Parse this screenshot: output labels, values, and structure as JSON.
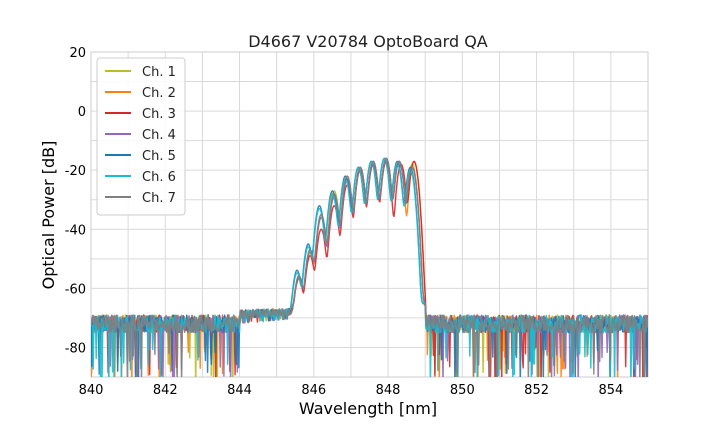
{
  "chart_data": {
    "type": "line",
    "title": "D4667 V20784 OptoBoard QA",
    "xlabel": "Wavelength [nm]",
    "ylabel": "Optical Power [dB]",
    "xlim": [
      840,
      855
    ],
    "ylim": [
      -90,
      20
    ],
    "xticks": [
      840,
      842,
      844,
      846,
      848,
      850,
      852,
      854
    ],
    "yticks": [
      20,
      0,
      -20,
      -40,
      -60,
      -80
    ],
    "grid": true,
    "legend_position": "top-left",
    "noise_floor_db": -72,
    "series": [
      {
        "name": "Ch. 1",
        "color": "#bcbd22",
        "peaks": [
          {
            "x": 845.6,
            "y": -56
          },
          {
            "x": 845.9,
            "y": -47
          },
          {
            "x": 846.2,
            "y": -35
          },
          {
            "x": 846.55,
            "y": -27
          },
          {
            "x": 846.9,
            "y": -22
          },
          {
            "x": 847.25,
            "y": -19
          },
          {
            "x": 847.6,
            "y": -17
          },
          {
            "x": 847.95,
            "y": -16
          },
          {
            "x": 848.3,
            "y": -17
          },
          {
            "x": 848.65,
            "y": -18
          }
        ]
      },
      {
        "name": "Ch. 2",
        "color": "#ff7f0e",
        "peaks": [
          {
            "x": 845.6,
            "y": -56
          },
          {
            "x": 845.9,
            "y": -48
          },
          {
            "x": 846.2,
            "y": -36
          },
          {
            "x": 846.55,
            "y": -28
          },
          {
            "x": 846.9,
            "y": -23
          },
          {
            "x": 847.25,
            "y": -19
          },
          {
            "x": 847.6,
            "y": -17
          },
          {
            "x": 847.95,
            "y": -16
          },
          {
            "x": 848.3,
            "y": -17
          },
          {
            "x": 848.7,
            "y": -17
          }
        ]
      },
      {
        "name": "Ch. 3",
        "color": "#d62728",
        "peaks": [
          {
            "x": 845.6,
            "y": -57
          },
          {
            "x": 845.9,
            "y": -49
          },
          {
            "x": 846.2,
            "y": -40
          },
          {
            "x": 846.55,
            "y": -32
          },
          {
            "x": 846.9,
            "y": -25
          },
          {
            "x": 847.25,
            "y": -20
          },
          {
            "x": 847.6,
            "y": -18
          },
          {
            "x": 847.95,
            "y": -17
          },
          {
            "x": 848.35,
            "y": -18
          },
          {
            "x": 848.7,
            "y": -17
          }
        ]
      },
      {
        "name": "Ch. 4",
        "color": "#9467bd",
        "peaks": [
          {
            "x": 845.6,
            "y": -56
          },
          {
            "x": 845.9,
            "y": -47
          },
          {
            "x": 846.2,
            "y": -36
          },
          {
            "x": 846.55,
            "y": -29
          },
          {
            "x": 846.9,
            "y": -23
          },
          {
            "x": 847.25,
            "y": -19
          },
          {
            "x": 847.6,
            "y": -17
          },
          {
            "x": 847.95,
            "y": -16
          },
          {
            "x": 848.3,
            "y": -17
          },
          {
            "x": 848.65,
            "y": -19
          }
        ]
      },
      {
        "name": "Ch. 5",
        "color": "#1f77b4",
        "peaks": [
          {
            "x": 845.55,
            "y": -54
          },
          {
            "x": 845.85,
            "y": -45
          },
          {
            "x": 846.15,
            "y": -32
          },
          {
            "x": 846.5,
            "y": -27
          },
          {
            "x": 846.85,
            "y": -22
          },
          {
            "x": 847.2,
            "y": -19
          },
          {
            "x": 847.55,
            "y": -17
          },
          {
            "x": 847.9,
            "y": -16
          },
          {
            "x": 848.25,
            "y": -17
          },
          {
            "x": 848.6,
            "y": -19
          }
        ]
      },
      {
        "name": "Ch. 6",
        "color": "#17becf",
        "peaks": [
          {
            "x": 845.55,
            "y": -55
          },
          {
            "x": 845.85,
            "y": -46
          },
          {
            "x": 846.15,
            "y": -33
          },
          {
            "x": 846.5,
            "y": -28
          },
          {
            "x": 846.85,
            "y": -23
          },
          {
            "x": 847.2,
            "y": -19
          },
          {
            "x": 847.55,
            "y": -17
          },
          {
            "x": 847.9,
            "y": -16
          },
          {
            "x": 848.25,
            "y": -18
          },
          {
            "x": 848.6,
            "y": -20
          }
        ]
      },
      {
        "name": "Ch. 7",
        "color": "#7f7f7f",
        "peaks": [
          {
            "x": 845.6,
            "y": -56
          },
          {
            "x": 845.9,
            "y": -47
          },
          {
            "x": 846.2,
            "y": -35
          },
          {
            "x": 846.55,
            "y": -28
          },
          {
            "x": 846.9,
            "y": -22
          },
          {
            "x": 847.25,
            "y": -19
          },
          {
            "x": 847.6,
            "y": -17
          },
          {
            "x": 847.95,
            "y": -16
          },
          {
            "x": 848.3,
            "y": -17
          },
          {
            "x": 848.65,
            "y": -19
          }
        ]
      }
    ]
  }
}
